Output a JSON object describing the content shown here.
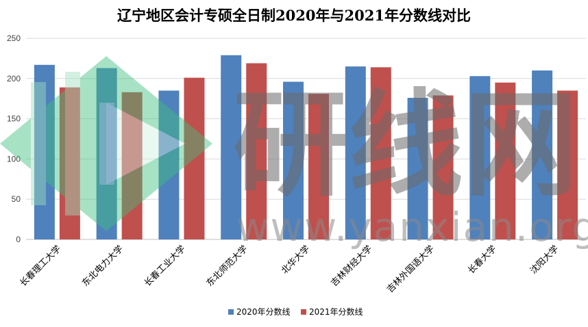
{
  "chart_data": {
    "type": "bar",
    "title": "辽宁地区会计专硕全日制2020年与2021年分数线对比",
    "categories": [
      "长春理工大学",
      "东北电力大学",
      "长春工业大学",
      "东北师范大学",
      "北华大学",
      "吉林财经大学",
      "吉林外国语大学",
      "长春大学",
      "沈阳大学"
    ],
    "series": [
      {
        "name": "2020年分数线",
        "color": "#4f81bd",
        "values": [
          217,
          213,
          185,
          229,
          196,
          215,
          176,
          203,
          210
        ]
      },
      {
        "name": "2021年分数线",
        "color": "#c0504d",
        "values": [
          189,
          183,
          201,
          219,
          181,
          214,
          179,
          195,
          185
        ]
      }
    ],
    "ylim": [
      0,
      250
    ],
    "yticks": [
      0,
      50,
      100,
      150,
      200,
      250
    ],
    "xlabel": "",
    "ylabel": "",
    "grid": true,
    "legend_position": "bottom"
  },
  "watermark": {
    "text": "研线网",
    "url": "www.yanxian.org",
    "logo": "yanxian-logo-icon"
  }
}
